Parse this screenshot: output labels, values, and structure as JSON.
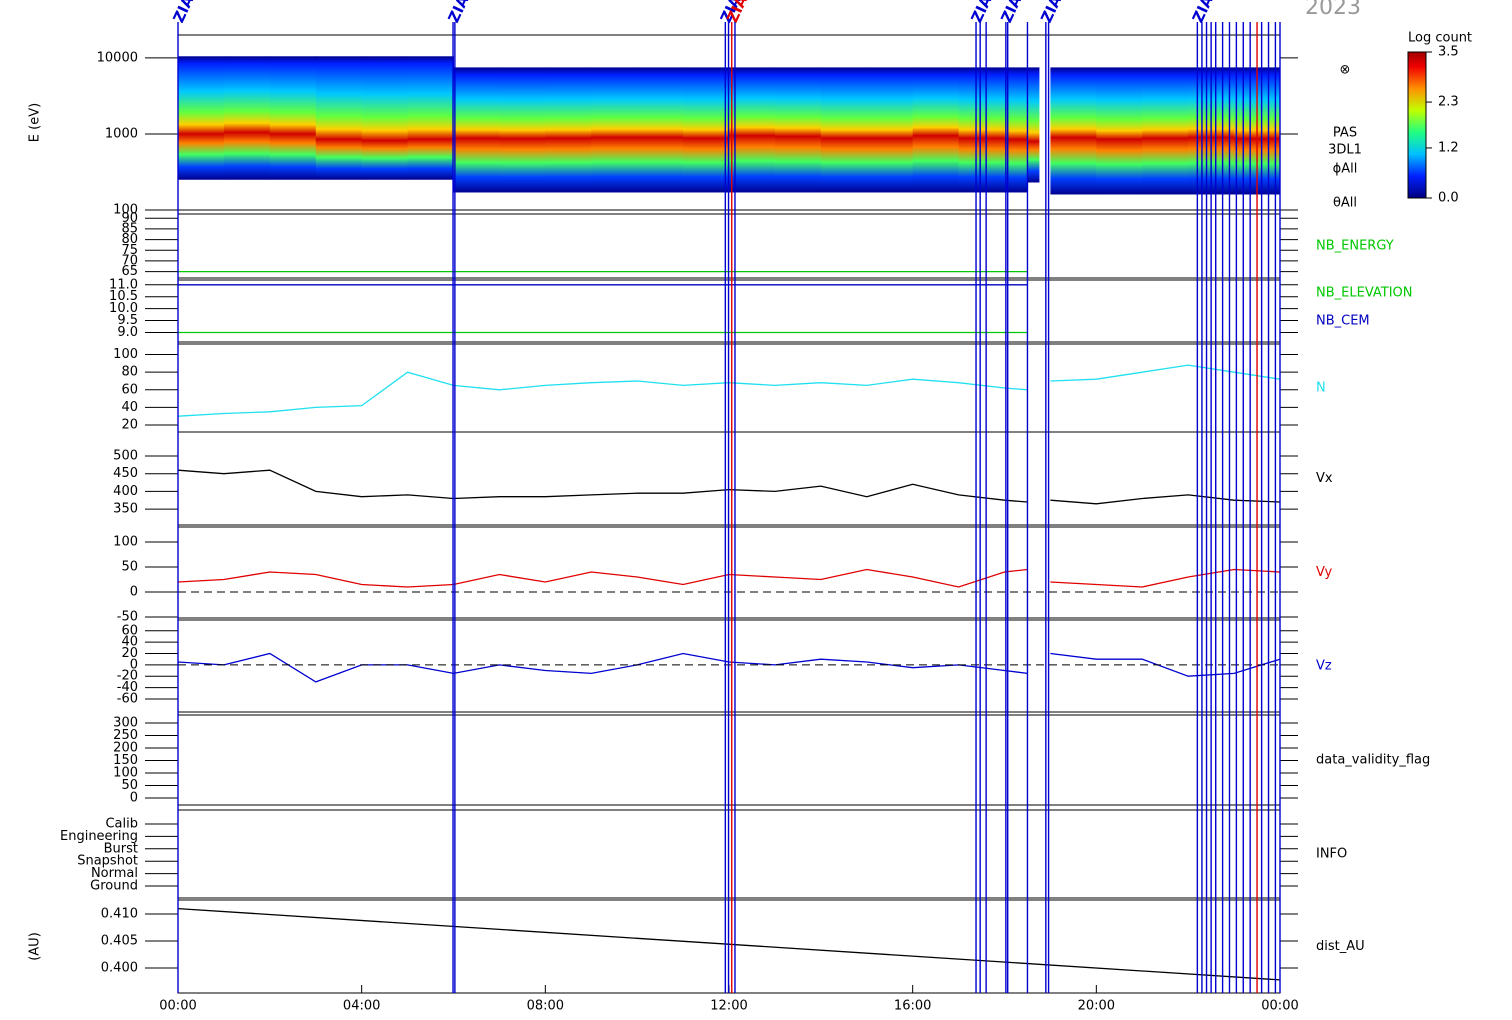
{
  "year": "2023",
  "events": [
    {
      "x": 0,
      "color": "#0000d0",
      "label": "ZIAS"
    },
    {
      "x": 5.99,
      "color": "#0000d0",
      "label": "ZIAS"
    },
    {
      "x": 6.03,
      "color": "#0000d0"
    },
    {
      "x": 11.92,
      "color": "#0000d0",
      "label": "ZIAS"
    },
    {
      "x": 11.99,
      "color": "#0000d0"
    },
    {
      "x": 12.06,
      "color": "#e00000",
      "label": "ZIAS"
    },
    {
      "x": 12.13,
      "color": "#0000d0"
    },
    {
      "x": 17.38,
      "color": "#0000d0",
      "label": "ZIAS"
    },
    {
      "x": 17.47,
      "color": "#0000d0"
    },
    {
      "x": 17.6,
      "color": "#0000d0"
    },
    {
      "x": 18.03,
      "color": "#0000d0",
      "label": "ZIAS"
    },
    {
      "x": 18.07,
      "color": "#0000d0"
    },
    {
      "x": 18.5,
      "color": "#0000d0"
    },
    {
      "x": 18.9,
      "color": "#0000d0",
      "label": "ZIAS"
    },
    {
      "x": 18.96,
      "color": "#0000d0"
    },
    {
      "x": 22.2,
      "color": "#0000d0",
      "label": "ZIAS"
    },
    {
      "x": 22.3,
      "color": "#0000d0"
    },
    {
      "x": 22.4,
      "color": "#0000d0"
    },
    {
      "x": 22.5,
      "color": "#0000d0"
    },
    {
      "x": 22.6,
      "color": "#0000d0"
    },
    {
      "x": 22.75,
      "color": "#0000d0"
    },
    {
      "x": 22.9,
      "color": "#0000d0"
    },
    {
      "x": 23.05,
      "color": "#0000d0"
    },
    {
      "x": 23.2,
      "color": "#0000d0"
    },
    {
      "x": 23.35,
      "color": "#0000d0"
    },
    {
      "x": 23.5,
      "color": "#e00000"
    },
    {
      "x": 23.6,
      "color": "#0000d0"
    },
    {
      "x": 23.75,
      "color": "#0000d0"
    },
    {
      "x": 23.9,
      "color": "#0000d0"
    },
    {
      "x": 24,
      "color": "#0000d0"
    }
  ],
  "chart_data": [
    {
      "type": "spectrogram",
      "ylabel": "E (eV)",
      "log_scale": true,
      "ylim": [
        100,
        20000
      ],
      "yticks": [
        10000,
        1000,
        100
      ],
      "x": [
        0,
        1,
        2,
        3,
        4,
        5,
        6,
        7,
        8,
        9,
        10,
        11,
        12,
        13,
        14,
        15,
        16,
        17,
        18,
        18.5,
        18.75,
        19,
        20,
        21,
        22,
        23,
        24
      ],
      "e_low": [
        250,
        250,
        250,
        250,
        250,
        250,
        170,
        170,
        170,
        170,
        170,
        170,
        170,
        170,
        170,
        170,
        170,
        170,
        170,
        230,
        null,
        160,
        160,
        160,
        160,
        160,
        160
      ],
      "e_peak": [
        1000,
        1050,
        1000,
        850,
        820,
        850,
        880,
        870,
        880,
        900,
        900,
        880,
        950,
        930,
        880,
        880,
        950,
        880,
        850,
        800,
        null,
        900,
        850,
        880,
        900,
        870,
        850
      ],
      "e_high": [
        10500,
        10500,
        10500,
        10500,
        10500,
        10500,
        7500,
        7500,
        7500,
        7500,
        7500,
        7500,
        7500,
        7500,
        7500,
        7500,
        7500,
        7500,
        7500,
        7500,
        null,
        7500,
        7500,
        7500,
        7500,
        7500,
        7500
      ],
      "annotations": [
        "⊗",
        "PAS",
        "3DL1",
        "ϕAll",
        "θAll"
      ],
      "colorbar": {
        "title": "Log count",
        "lim": [
          0,
          3.5
        ],
        "ticks": [
          3.5,
          2.3,
          1.2,
          {
            "value": 0,
            "label": "0.0"
          }
        ]
      }
    },
    {
      "type": "line",
      "ylim": [
        62,
        92
      ],
      "yticks": [
        65,
        70,
        75,
        80,
        85,
        90
      ],
      "x": [
        0,
        18.5
      ],
      "series": [
        {
          "name": "NB_ENERGY",
          "color": "#00c800",
          "values": [
            65,
            65
          ]
        }
      ]
    },
    {
      "type": "line",
      "ylim": [
        8.6,
        11.2
      ],
      "yticks": [
        {
          "value": 9,
          "label": "9.0"
        },
        9.5,
        {
          "value": 10,
          "label": "10.0"
        },
        10.5,
        {
          "value": 11,
          "label": "11.0"
        }
      ],
      "x": [
        0,
        18.5
      ],
      "series": [
        {
          "name": "NB_ELEVATION",
          "color": "#00c800",
          "values": [
            9,
            9
          ]
        },
        {
          "name": "NB_CEM",
          "color": "#0000c0",
          "values": [
            11,
            11
          ]
        }
      ]
    },
    {
      "type": "line",
      "ylim": [
        12,
        112
      ],
      "yticks": [
        20,
        40,
        60,
        80,
        100
      ],
      "x": [
        0,
        1,
        2,
        3,
        4,
        5,
        6,
        7,
        8,
        9,
        10,
        11,
        12,
        13,
        14,
        15,
        16,
        17,
        18,
        18.5,
        18.75,
        19,
        20,
        21,
        22,
        23,
        24
      ],
      "series": [
        {
          "name": "N",
          "color": "#20e0f0",
          "values": [
            30,
            33,
            35,
            40,
            42,
            80,
            65,
            60,
            65,
            68,
            70,
            65,
            68,
            65,
            68,
            65,
            72,
            68,
            62,
            60,
            null,
            70,
            72,
            80,
            88,
            80,
            72
          ]
        }
      ]
    },
    {
      "type": "line",
      "ylim": [
        305,
        568
      ],
      "yticks": [
        350,
        400,
        450,
        500
      ],
      "x": [
        0,
        1,
        2,
        3,
        4,
        5,
        6,
        7,
        8,
        9,
        10,
        11,
        12,
        13,
        14,
        15,
        16,
        17,
        18,
        18.5,
        18.75,
        19,
        20,
        21,
        22,
        23,
        24
      ],
      "series": [
        {
          "name": "Vx",
          "color": "#000000",
          "values": [
            460,
            450,
            460,
            400,
            385,
            390,
            380,
            385,
            385,
            390,
            395,
            395,
            405,
            400,
            415,
            385,
            420,
            390,
            375,
            370,
            null,
            375,
            365,
            380,
            390,
            375,
            370
          ]
        }
      ]
    },
    {
      "type": "line",
      "ylim": [
        -52,
        130
      ],
      "yticks": [
        -50,
        0,
        50,
        100
      ],
      "zero_line": true,
      "x": [
        0,
        1,
        2,
        3,
        4,
        5,
        6,
        7,
        8,
        9,
        10,
        11,
        12,
        13,
        14,
        15,
        16,
        17,
        18,
        18.5,
        18.75,
        19,
        20,
        21,
        22,
        23,
        24
      ],
      "series": [
        {
          "name": "Vy",
          "color": "#e00000",
          "values": [
            20,
            25,
            40,
            35,
            15,
            10,
            15,
            35,
            20,
            40,
            30,
            15,
            35,
            30,
            25,
            45,
            30,
            10,
            40,
            45,
            null,
            20,
            15,
            10,
            30,
            45,
            40
          ]
        }
      ]
    },
    {
      "type": "line",
      "ylim": [
        -83,
        79
      ],
      "yticks": [
        -60,
        -40,
        -20,
        0,
        20,
        40,
        60
      ],
      "zero_line": true,
      "x": [
        0,
        1,
        2,
        3,
        4,
        5,
        6,
        7,
        8,
        9,
        10,
        11,
        12,
        13,
        14,
        15,
        16,
        17,
        18,
        18.5,
        18.75,
        19,
        20,
        21,
        22,
        23,
        24
      ],
      "series": [
        {
          "name": "Vz",
          "color": "#0000d0",
          "values": [
            5,
            0,
            20,
            -30,
            0,
            0,
            -15,
            0,
            -10,
            -15,
            0,
            20,
            5,
            0,
            10,
            5,
            -5,
            0,
            -10,
            -15,
            null,
            20,
            10,
            10,
            -20,
            -15,
            10
          ]
        }
      ]
    },
    {
      "type": "line",
      "ylim": [
        -28,
        332
      ],
      "yticks": [
        0,
        50,
        100,
        150,
        200,
        250,
        300
      ],
      "label": "data_validity_flag",
      "series": []
    },
    {
      "type": "categorical",
      "categories": [
        "Calib",
        "Engineering",
        "Burst",
        "Snapshot",
        "Normal",
        "Ground"
      ],
      "label": "INFO"
    },
    {
      "type": "line",
      "ylabel": "(AU)",
      "ylim": [
        0.39537,
        0.4126
      ],
      "yticks": [
        {
          "value": 0.4,
          "label": "0.400"
        },
        0.405,
        {
          "value": 0.41,
          "label": "0.410"
        }
      ],
      "x": [
        0,
        24
      ],
      "series": [
        {
          "name": "dist_AU",
          "color": "#000000",
          "values": [
            0.411,
            0.3978
          ]
        }
      ],
      "xlim": [
        0,
        24
      ],
      "xticks": [
        {
          "value": 0,
          "label": "00:00"
        },
        {
          "value": 4,
          "label": "04:00"
        },
        {
          "value": 8,
          "label": "08:00"
        },
        {
          "value": 12,
          "label": "12:00"
        },
        {
          "value": 16,
          "label": "16:00"
        },
        {
          "value": 20,
          "label": "20:00"
        },
        {
          "value": 24,
          "label": "00:00"
        }
      ]
    }
  ]
}
